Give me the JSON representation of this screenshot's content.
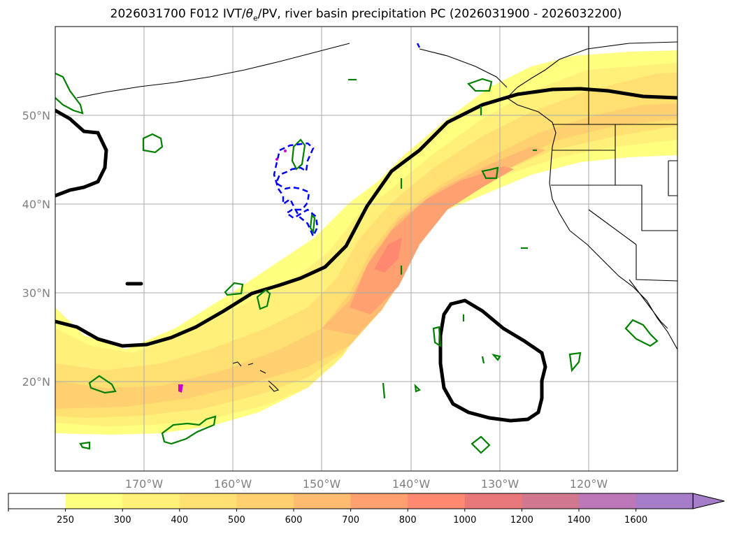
{
  "title": {
    "prefix": "2026031700 F012 IVT/",
    "theta": "θ",
    "theta_sub": "e",
    "suffix": "/PV, river basin precipitation PC (2026031900 - 2026032200)"
  },
  "map": {
    "lat_labels": [
      "50°N",
      "40°N",
      "30°N",
      "20°N"
    ],
    "lon_labels": [
      "170°W",
      "160°W",
      "150°W",
      "140°W",
      "130°W",
      "120°W"
    ]
  },
  "colorbar": {
    "labels": [
      "250",
      "300",
      "400",
      "500",
      "600",
      "700",
      "800",
      "1000",
      "1200",
      "1400",
      "1600"
    ],
    "colors": [
      "#ffffff",
      "#ffff80",
      "#fff07a",
      "#ffe070",
      "#ffd070",
      "#ffbc70",
      "#ffa070",
      "#ff8870",
      "#e8787a",
      "#d07890",
      "#bc78b8",
      "#a47cc8"
    ],
    "extend": "max"
  }
}
